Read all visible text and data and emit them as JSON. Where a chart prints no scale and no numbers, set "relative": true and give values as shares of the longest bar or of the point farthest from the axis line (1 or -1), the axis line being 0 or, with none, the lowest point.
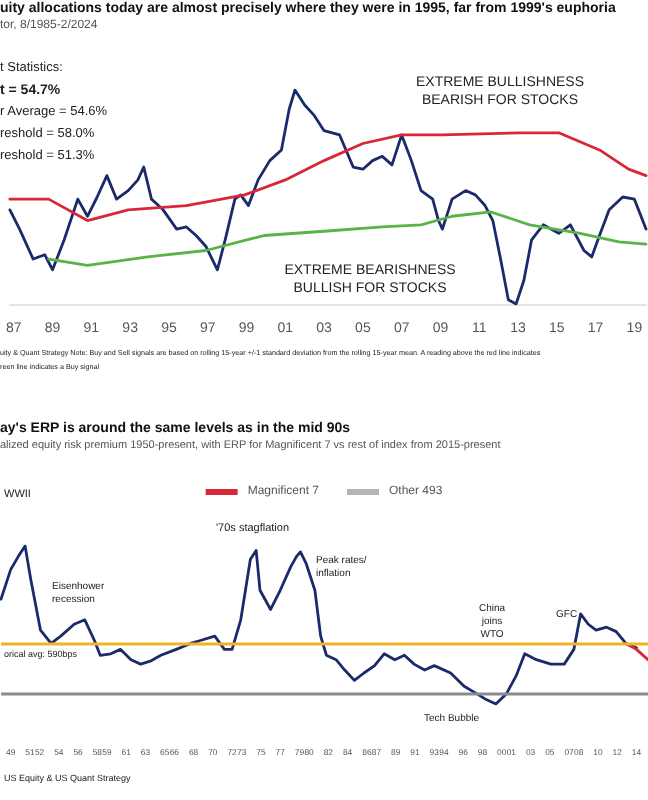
{
  "chart_data": [
    {
      "type": "line",
      "title": "uity allocations today are almost precisely where they were in 1995, far from 1999's euphoria",
      "subtitle": "tor, 8/1985-2/2024",
      "relative": true,
      "legend": false,
      "grid": false,
      "tick_labels": "x",
      "xlim": [
        1986.8,
        2019.6
      ],
      "xticks": [
        {
          "value": 1987,
          "label": "87"
        },
        {
          "value": 1989,
          "label": "89"
        },
        {
          "value": 1991,
          "label": "91"
        },
        {
          "value": 1993,
          "label": "93"
        },
        {
          "value": 1995,
          "label": "95"
        },
        {
          "value": 1997,
          "label": "97"
        },
        {
          "value": 1999,
          "label": "99"
        },
        {
          "value": 2001,
          "label": "01"
        },
        {
          "value": 2003,
          "label": "03"
        },
        {
          "value": 2005,
          "label": "05"
        },
        {
          "value": 2007,
          "label": "07"
        },
        {
          "value": 2009,
          "label": "09"
        },
        {
          "value": 2011,
          "label": "11"
        },
        {
          "value": 2013,
          "label": "13"
        },
        {
          "value": 2015,
          "label": "15"
        },
        {
          "value": 2017,
          "label": "17"
        },
        {
          "value": 2019,
          "label": "19"
        }
      ],
      "series": [
        {
          "color": "#1b2a6b",
          "x": [
            1986.8,
            1987.3,
            1988.0,
            1988.6,
            1989.0,
            1989.6,
            1990.3,
            1990.8,
            1991.3,
            1991.8,
            1992.3,
            1992.9,
            1993.4,
            1993.7,
            1994.1,
            1994.7,
            1995.4,
            1995.9,
            1996.4,
            1996.9,
            1997.5,
            1997.9,
            1998.4,
            1998.7,
            1999.1,
            1999.6,
            2000.2,
            2000.8,
            2001.2,
            2001.5,
            2002.0,
            2002.5,
            2003.0,
            2003.8,
            2004.5,
            2005.0,
            2005.5,
            2006.0,
            2006.5,
            2007.0,
            2007.5,
            2008.0,
            2008.6,
            2008.9,
            2009.1,
            2009.6,
            2010.3,
            2010.8,
            2011.3,
            2011.7,
            2012.1,
            2012.5,
            2012.9,
            2013.3,
            2013.7,
            2014.3,
            2015.1,
            2015.7,
            2016.4,
            2016.8,
            2017.2,
            2017.7,
            2018.4,
            2019.0,
            2019.6
          ],
          "values": [
            0.44,
            0.35,
            0.21,
            0.23,
            0.16,
            0.3,
            0.49,
            0.41,
            0.5,
            0.6,
            0.49,
            0.53,
            0.58,
            0.64,
            0.49,
            0.44,
            0.35,
            0.36,
            0.32,
            0.27,
            0.16,
            0.3,
            0.49,
            0.51,
            0.46,
            0.58,
            0.67,
            0.72,
            0.91,
            1,
            0.93,
            0.88,
            0.81,
            0.79,
            0.64,
            0.63,
            0.67,
            0.69,
            0.65,
            0.79,
            0.67,
            0.53,
            0.49,
            0.39,
            0.35,
            0.49,
            0.53,
            0.51,
            0.46,
            0.39,
            0.21,
            0.02,
            0,
            0.11,
            0.3,
            0.37,
            0.33,
            0.37,
            0.25,
            0.22,
            0.32,
            0.44,
            0.5,
            0.49,
            0.35
          ]
        },
        {
          "color": "#d6283a",
          "x": [
            1986.8,
            1988.8,
            1990.8,
            1992.9,
            1995.9,
            1998.9,
            2001.0,
            2003.0,
            2005.0,
            2007.0,
            2009.1,
            2013.1,
            2015.1,
            2017.2,
            2018.7,
            2019.6
          ],
          "values": [
            0.49,
            0.49,
            0.39,
            0.44,
            0.46,
            0.51,
            0.58,
            0.67,
            0.75,
            0.79,
            0.79,
            0.8,
            0.8,
            0.72,
            0.63,
            0.6
          ]
        },
        {
          "color": "#59b447",
          "x": [
            1988.8,
            1990.8,
            1993.9,
            1996.9,
            1999.9,
            2003.0,
            2006.0,
            2008.0,
            2009.6,
            2011.6,
            2013.6,
            2016.2,
            2018.2,
            2019.6
          ],
          "values": [
            0.21,
            0.18,
            0.22,
            0.25,
            0.32,
            0.34,
            0.36,
            0.37,
            0.41,
            0.43,
            0.37,
            0.33,
            0.29,
            0.28
          ]
        }
      ],
      "annotations": [
        "t Statistics:",
        "t = 54.7%",
        "r Average = 54.6%",
        "reshold = 58.0%",
        "reshold = 51.3%",
        "EXTREME BULLISHNESS\nBEARISH FOR STOCKS",
        "EXTREME BEARISHNESS\nBULLISH FOR STOCKS",
        "uity & Quant Strategy Note: Buy and Sell signals are based on rolling 15-year +/-1 standard deviation from the rolling 15-year mean. A reading above the red line indicates",
        "reen line indicates a Buy signal"
      ]
    },
    {
      "type": "line",
      "title": "ay's ERP is around the same levels as in the mid 90s",
      "subtitle": "alized equity risk premium 1950-present, with ERP for Magnificent 7 vs rest of index from 2015-present",
      "relative": true,
      "legend": "top",
      "grid": false,
      "tick_labels": "x",
      "xlim": [
        1948.0,
        2015.2
      ],
      "xticks": [
        {
          "value": 1949,
          "label": "49"
        },
        {
          "value": 1951,
          "label": "51"
        },
        {
          "value": 1952,
          "label": "52"
        },
        {
          "value": 1954,
          "label": "54"
        },
        {
          "value": 1956,
          "label": "56"
        },
        {
          "value": 1958,
          "label": "58"
        },
        {
          "value": 1959,
          "label": "59"
        },
        {
          "value": 1961,
          "label": "61"
        },
        {
          "value": 1963,
          "label": "63"
        },
        {
          "value": 1965,
          "label": "65"
        },
        {
          "value": 1966,
          "label": "66"
        },
        {
          "value": 1968,
          "label": "68"
        },
        {
          "value": 1970,
          "label": "70"
        },
        {
          "value": 1972,
          "label": "72"
        },
        {
          "value": 1973,
          "label": "73"
        },
        {
          "value": 1975,
          "label": "75"
        },
        {
          "value": 1977,
          "label": "77"
        },
        {
          "value": 1979,
          "label": "79"
        },
        {
          "value": 1980,
          "label": "80"
        },
        {
          "value": 1982,
          "label": "82"
        },
        {
          "value": 1984,
          "label": "84"
        },
        {
          "value": 1986,
          "label": "86"
        },
        {
          "value": 1987,
          "label": "87"
        },
        {
          "value": 1989,
          "label": "89"
        },
        {
          "value": 1991,
          "label": "91"
        },
        {
          "value": 1993,
          "label": "93"
        },
        {
          "value": 1994,
          "label": "94"
        },
        {
          "value": 1996,
          "label": "96"
        },
        {
          "value": 1998,
          "label": "98"
        },
        {
          "value": 2000,
          "label": "00"
        },
        {
          "value": 2001,
          "label": "01"
        },
        {
          "value": 2003,
          "label": "03"
        },
        {
          "value": 2005,
          "label": "05"
        },
        {
          "value": 2007,
          "label": "07"
        },
        {
          "value": 2008,
          "label": "08"
        },
        {
          "value": 2010,
          "label": "10"
        },
        {
          "value": 2012,
          "label": "12"
        },
        {
          "value": 2014,
          "label": "14"
        }
      ],
      "series": [
        {
          "color": "#1b2a6b",
          "x": [
            1948.0,
            1949.0,
            1949.8,
            1950.5,
            1951.1,
            1952.1,
            1953.2,
            1954.2,
            1955.6,
            1956.7,
            1957.7,
            1958.3,
            1959.4,
            1960.4,
            1961.5,
            1962.5,
            1963.5,
            1964.6,
            1966.2,
            1967.7,
            1968.7,
            1970.2,
            1971.2,
            1972.0,
            1972.9,
            1973.9,
            1974.5,
            1974.9,
            1976.0,
            1977.0,
            1978.1,
            1978.7,
            1979.1,
            1979.7,
            1980.6,
            1981.2,
            1981.8,
            1982.8,
            1983.7,
            1984.7,
            1985.7,
            1986.8,
            1987.8,
            1988.9,
            1989.9,
            1990.9,
            1992.0,
            1993.0,
            1994.7,
            1996.1,
            1997.4,
            1998.4,
            1999.4,
            2000.5,
            2001.5,
            2002.4,
            2003.6,
            2005.1,
            2006.5,
            2007.5,
            2008.2,
            2009.0,
            2009.8,
            2010.9,
            2011.9,
            2012.9,
            2014.0
          ],
          "values": [
            0.64,
            0.84,
            0.93,
            1,
            0.77,
            0.43,
            0.34,
            0.39,
            0.47,
            0.5,
            0.36,
            0.26,
            0.27,
            0.3,
            0.23,
            0.2,
            0.22,
            0.26,
            0.3,
            0.34,
            0.36,
            0.39,
            0.3,
            0.3,
            0.5,
            0.91,
            0.97,
            0.7,
            0.57,
            0.7,
            0.86,
            0.93,
            0.96,
            0.88,
            0.7,
            0.39,
            0.26,
            0.23,
            0.16,
            0.09,
            0.14,
            0.19,
            0.27,
            0.23,
            0.26,
            0.2,
            0.16,
            0.19,
            0.14,
            0.05,
            0,
            -0.04,
            -0.07,
            0,
            0.12,
            0.27,
            0.23,
            0.2,
            0.2,
            0.3,
            0.54,
            0.47,
            0.43,
            0.45,
            0.42,
            0.34,
            0.31
          ]
        },
        {
          "name": "Magnificent 7",
          "color": "#d6283a",
          "x": [
            2012.9,
            2014.0,
            2015.2
          ],
          "values": [
            0.34,
            0.3,
            0.23
          ]
        },
        {
          "name": "Other 493",
          "color": "#b5b5b5"
        }
      ],
      "ref_lines": [
        {
          "axis": "y",
          "value": 0.34,
          "color": "#f0b323"
        },
        {
          "axis": "y",
          "value": 0,
          "color": "#8c8c8c"
        }
      ],
      "annotations": [
        "orical avg: 590bps",
        "WWII",
        "Eisenhower\nrecession",
        "'70s stagflation",
        "Peak rates/\ninflation",
        "China\njoins\nWTO",
        "GFC",
        "Tech Bubble",
        "US Equity & US Quant Strategy"
      ]
    }
  ]
}
